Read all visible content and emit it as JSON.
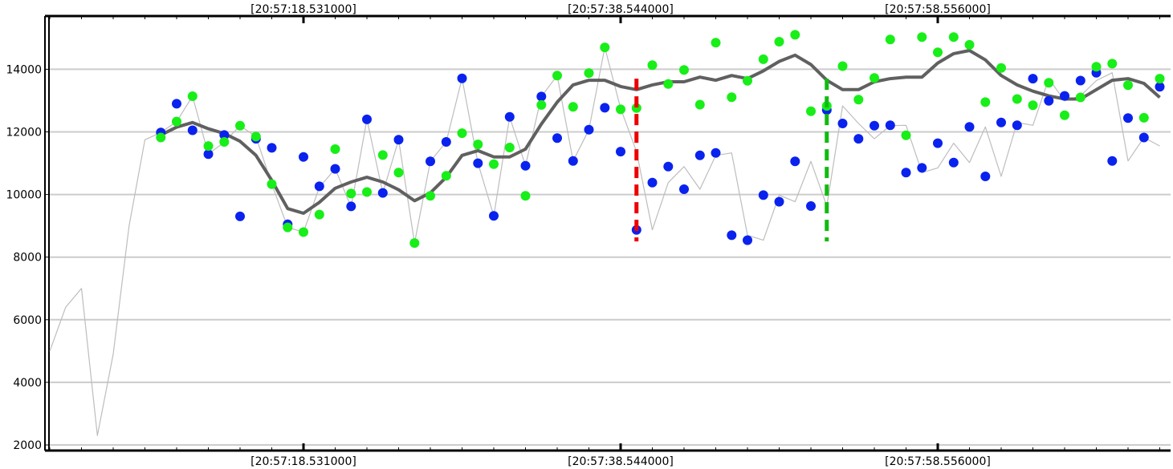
{
  "chart_data": {
    "type": "scatter",
    "title": "",
    "xlabel": "",
    "ylabel": "",
    "xlim": [
      0,
      70
    ],
    "ylim": [
      1900,
      15300
    ],
    "grid": true,
    "y_ticks": [
      2000,
      4000,
      6000,
      8000,
      10000,
      12000,
      14000
    ],
    "x_ticks": [
      {
        "x": 16,
        "label": "[20:57:18.531000]"
      },
      {
        "x": 36,
        "label": "[20:57:38.544000]"
      },
      {
        "x": 56,
        "label": "[20:57:58.556000]"
      }
    ],
    "colors": {
      "blue": "#0a22ee",
      "green": "#18ee18",
      "raw_line": "#bdbdbd",
      "moving_average": "#606060",
      "marker_red": "#ee0000",
      "marker_green": "#11bb11",
      "grid": "#cccccc"
    },
    "series": [
      {
        "kind": "line",
        "style": "thin",
        "x": [
          0,
          1,
          2,
          3,
          4,
          5,
          6,
          7,
          8,
          9,
          10,
          11,
          12,
          13,
          14,
          15,
          16,
          17,
          18,
          19,
          20,
          21,
          22,
          23,
          24,
          25,
          26,
          27,
          28,
          29,
          30,
          31,
          32,
          33,
          34,
          35,
          36,
          37,
          38,
          39,
          40,
          41,
          42,
          43,
          44,
          45,
          46,
          47,
          48,
          49,
          50,
          51,
          52,
          53,
          54,
          55,
          56,
          57,
          58,
          59,
          60,
          61,
          62,
          63,
          64,
          65,
          66,
          67,
          68,
          69,
          70
        ],
        "values": [
          5000,
          6400,
          7000,
          2300,
          4900,
          9000,
          11750,
          11980,
          12330,
          13140,
          11290,
          11670,
          12200,
          11850,
          10330,
          8950,
          8800,
          10230,
          10820,
          9600,
          12400,
          10050,
          11750,
          8450,
          11060,
          11680,
          13710,
          11000,
          9320,
          12480,
          10920,
          13130,
          13800,
          11070,
          12070,
          14700,
          12750,
          11370,
          8870,
          10380,
          10890,
          10170,
          11250,
          11330,
          8700,
          8540,
          9980,
          9770,
          11060,
          9630,
          12830,
          12270,
          11780,
          12200,
          12210,
          10700,
          10850,
          11640,
          11020,
          12160,
          10580,
          12300,
          12210,
          13700,
          12990,
          13150,
          13640,
          13890,
          11070,
          11820,
          11550
        ]
      },
      {
        "kind": "line",
        "style": "thick",
        "x": [
          7,
          8,
          9,
          10,
          11,
          12,
          13,
          14,
          15,
          16,
          17,
          18,
          19,
          20,
          21,
          22,
          23,
          24,
          25,
          26,
          27,
          28,
          29,
          30,
          31,
          32,
          33,
          34,
          35,
          36,
          37,
          38,
          39,
          40,
          41,
          42,
          43,
          44,
          45,
          46,
          47,
          48,
          49,
          50,
          51,
          52,
          53,
          54,
          55,
          56,
          57,
          58,
          59,
          60,
          61,
          62,
          63,
          64,
          65,
          66,
          67,
          68,
          69,
          70
        ],
        "values": [
          11900,
          12150,
          12300,
          12100,
          11950,
          11700,
          11250,
          10450,
          9550,
          9400,
          9750,
          10200,
          10400,
          10550,
          10400,
          10150,
          9800,
          10050,
          10550,
          11250,
          11400,
          11200,
          11200,
          11450,
          12250,
          12950,
          13500,
          13650,
          13650,
          13450,
          13350,
          13500,
          13600,
          13600,
          13750,
          13650,
          13800,
          13700,
          13950,
          14250,
          14450,
          14150,
          13650,
          13350,
          13350,
          13600,
          13700,
          13750,
          13750,
          14200,
          14500,
          14600,
          14300,
          13800,
          13500,
          13300,
          13150,
          13050,
          13050,
          13350,
          13650,
          13700,
          13550,
          13100
        ]
      },
      {
        "kind": "scatter",
        "color": "blue",
        "points": [
          [
            7,
            11980
          ],
          [
            8,
            12900
          ],
          [
            9,
            12050
          ],
          [
            10,
            11290
          ],
          [
            11,
            11900
          ],
          [
            12,
            9300
          ],
          [
            13,
            11780
          ],
          [
            14,
            11490
          ],
          [
            15,
            9050
          ],
          [
            16,
            11200
          ],
          [
            17,
            10260
          ],
          [
            18,
            10820
          ],
          [
            19,
            9620
          ],
          [
            20,
            12400
          ],
          [
            21,
            10050
          ],
          [
            22,
            11750
          ],
          [
            24,
            11060
          ],
          [
            25,
            11680
          ],
          [
            26,
            13710
          ],
          [
            27,
            11000
          ],
          [
            28,
            9320
          ],
          [
            29,
            12480
          ],
          [
            30,
            10920
          ],
          [
            31,
            13130
          ],
          [
            32,
            11800
          ],
          [
            33,
            11070
          ],
          [
            34,
            12070
          ],
          [
            35,
            12770
          ],
          [
            36,
            11370
          ],
          [
            37,
            8870
          ],
          [
            38,
            10380
          ],
          [
            39,
            10890
          ],
          [
            40,
            10170
          ],
          [
            41,
            11250
          ],
          [
            42,
            11330
          ],
          [
            43,
            8700
          ],
          [
            44,
            8540
          ],
          [
            45,
            9980
          ],
          [
            46,
            9770
          ],
          [
            47,
            11060
          ],
          [
            48,
            9630
          ],
          [
            49,
            12700
          ],
          [
            50,
            12270
          ],
          [
            51,
            11780
          ],
          [
            52,
            12200
          ],
          [
            53,
            12210
          ],
          [
            54,
            10700
          ],
          [
            55,
            10850
          ],
          [
            56,
            11640
          ],
          [
            57,
            11020
          ],
          [
            58,
            12160
          ],
          [
            59,
            10580
          ],
          [
            60,
            12300
          ],
          [
            61,
            12210
          ],
          [
            62,
            13700
          ],
          [
            63,
            12990
          ],
          [
            64,
            13150
          ],
          [
            65,
            13640
          ],
          [
            66,
            13890
          ],
          [
            67,
            11070
          ],
          [
            68,
            12440
          ],
          [
            69,
            11820
          ],
          [
            70,
            13440
          ]
        ]
      },
      {
        "kind": "scatter",
        "color": "green",
        "points": [
          [
            7,
            11820
          ],
          [
            8,
            12330
          ],
          [
            9,
            13140
          ],
          [
            10,
            11550
          ],
          [
            11,
            11680
          ],
          [
            12,
            12200
          ],
          [
            13,
            11850
          ],
          [
            14,
            10330
          ],
          [
            15,
            8950
          ],
          [
            16,
            8800
          ],
          [
            17,
            9360
          ],
          [
            18,
            11450
          ],
          [
            19,
            10030
          ],
          [
            20,
            10080
          ],
          [
            21,
            11260
          ],
          [
            22,
            10700
          ],
          [
            23,
            8450
          ],
          [
            24,
            9960
          ],
          [
            25,
            10600
          ],
          [
            26,
            11960
          ],
          [
            27,
            11600
          ],
          [
            28,
            10970
          ],
          [
            29,
            11500
          ],
          [
            30,
            9960
          ],
          [
            31,
            12860
          ],
          [
            32,
            13800
          ],
          [
            33,
            12800
          ],
          [
            34,
            13880
          ],
          [
            35,
            14700
          ],
          [
            36,
            12720
          ],
          [
            37,
            12760
          ],
          [
            38,
            14130
          ],
          [
            39,
            13530
          ],
          [
            40,
            13980
          ],
          [
            41,
            12870
          ],
          [
            42,
            14850
          ],
          [
            43,
            13110
          ],
          [
            44,
            13630
          ],
          [
            45,
            14320
          ],
          [
            46,
            14880
          ],
          [
            47,
            15100
          ],
          [
            48,
            12660
          ],
          [
            49,
            12830
          ],
          [
            50,
            14100
          ],
          [
            51,
            13030
          ],
          [
            52,
            13720
          ],
          [
            53,
            14950
          ],
          [
            54,
            11890
          ],
          [
            55,
            15030
          ],
          [
            56,
            14540
          ],
          [
            57,
            15030
          ],
          [
            58,
            14780
          ],
          [
            59,
            12950
          ],
          [
            60,
            14040
          ],
          [
            61,
            13050
          ],
          [
            62,
            12850
          ],
          [
            63,
            13570
          ],
          [
            64,
            12530
          ],
          [
            65,
            13100
          ],
          [
            66,
            14080
          ],
          [
            67,
            14180
          ],
          [
            68,
            13490
          ],
          [
            69,
            12450
          ],
          [
            70,
            13700
          ]
        ]
      }
    ],
    "annotations": [
      {
        "type": "vline",
        "x": 37,
        "y_range": [
          8500,
          13700
        ],
        "color": "marker_red",
        "style": "dashed"
      },
      {
        "type": "vline",
        "x": 49,
        "y_range": [
          8500,
          13700
        ],
        "color": "marker_green",
        "style": "dashed"
      }
    ]
  }
}
